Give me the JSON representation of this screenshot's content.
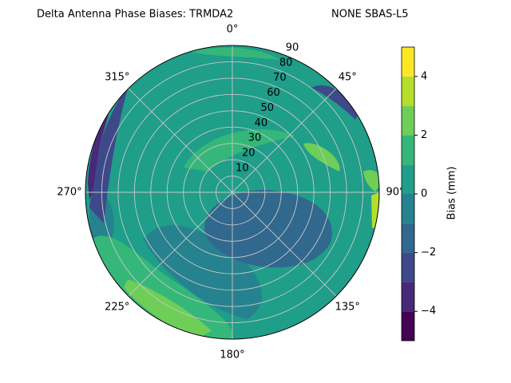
{
  "chart_data": {
    "type": "polar-contour",
    "title": "Delta Antenna Phase Biases: TRMDA2",
    "subtitle": "NONE SBAS-L5",
    "colorbar_label": "Bias (mm)",
    "levels": [
      -5,
      -4,
      -3,
      -2,
      -1,
      0,
      1,
      2,
      3,
      4,
      5
    ],
    "colors": [
      "#440154",
      "#482878",
      "#3e4989",
      "#31688e",
      "#26828e",
      "#1f9e89",
      "#35b779",
      "#6ece58",
      "#b5de2b",
      "#fde725"
    ],
    "clim": [
      -5,
      5
    ],
    "cticks": [
      {
        "value": -4,
        "label": "−4"
      },
      {
        "value": -2,
        "label": "−2"
      },
      0,
      2,
      4
    ],
    "rlim": [
      0,
      90
    ],
    "rticks": [
      10,
      20,
      30,
      40,
      50,
      60,
      70,
      80,
      90
    ],
    "theta_ticks": [
      {
        "value": 0,
        "label": "0°"
      },
      {
        "value": 45,
        "label": "45°"
      },
      {
        "value": 90,
        "label": "90°"
      },
      {
        "value": 135,
        "label": "135°"
      },
      {
        "value": 180,
        "label": "180°"
      },
      {
        "value": 225,
        "label": "225°"
      },
      {
        "value": 270,
        "label": "270°"
      },
      {
        "value": 315,
        "label": "315°"
      }
    ],
    "grid": true
  }
}
